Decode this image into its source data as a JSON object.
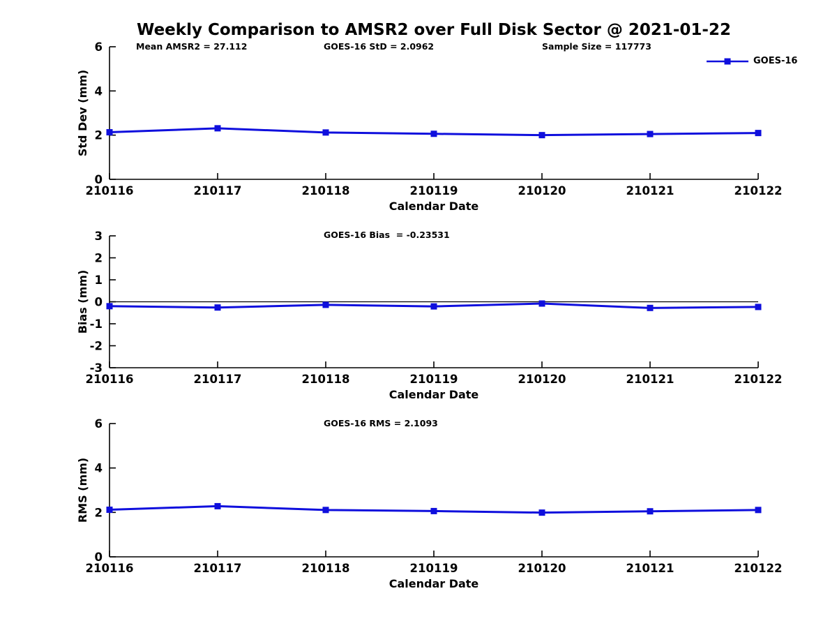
{
  "figure": {
    "title": "Weekly Comparison to AMSR2 over Full Disk Sector @ 2021-01-22"
  },
  "colors": {
    "line": "#0f0fdd",
    "axis": "#000000",
    "text": "#000000",
    "zero_line": "#000000"
  },
  "legend": {
    "label": "GOES-16"
  },
  "annotations": {
    "mean_amsr2": "Mean AMSR2 = 27.112",
    "goes_std": "GOES-16 StD = 2.0962",
    "sample_size": "Sample Size = 117773",
    "goes_bias": "GOES-16 Bias  = -0.23531",
    "goes_rms": "GOES-16 RMS = 2.1093"
  },
  "chart_data": [
    {
      "type": "line",
      "title": "",
      "x": [
        210116,
        210117,
        210118,
        210119,
        210120,
        210121,
        210122
      ],
      "x_tick_labels": [
        "210116",
        "210117",
        "210118",
        "210119",
        "210120",
        "210121",
        "210122"
      ],
      "series": [
        {
          "name": "GOES-16",
          "values": [
            2.13,
            2.31,
            2.12,
            2.06,
            2.0,
            2.05,
            2.0962
          ]
        }
      ],
      "xlabel": "Calendar Date",
      "ylabel": "Std Dev (mm)",
      "ylim": [
        0,
        6
      ],
      "yticks": [
        0,
        2,
        4,
        6
      ],
      "zero_line": false,
      "grid": false,
      "legend_position": "outside-top-right"
    },
    {
      "type": "line",
      "title": "",
      "x": [
        210116,
        210117,
        210118,
        210119,
        210120,
        210121,
        210122
      ],
      "x_tick_labels": [
        "210116",
        "210117",
        "210118",
        "210119",
        "210120",
        "210121",
        "210122"
      ],
      "series": [
        {
          "name": "GOES-16",
          "values": [
            -0.2,
            -0.26,
            -0.14,
            -0.21,
            -0.08,
            -0.28,
            -0.23531
          ]
        }
      ],
      "xlabel": "Calendar Date",
      "ylabel": "Bias (mm)",
      "ylim": [
        -3,
        3
      ],
      "yticks": [
        -3,
        -2,
        -1,
        0,
        1,
        2,
        3
      ],
      "zero_line": true,
      "grid": false,
      "legend_position": "none"
    },
    {
      "type": "line",
      "title": "",
      "x": [
        210116,
        210117,
        210118,
        210119,
        210120,
        210121,
        210122
      ],
      "x_tick_labels": [
        "210116",
        "210117",
        "210118",
        "210119",
        "210120",
        "210121",
        "210122"
      ],
      "series": [
        {
          "name": "GOES-16",
          "values": [
            2.12,
            2.28,
            2.11,
            2.06,
            1.99,
            2.05,
            2.1093
          ]
        }
      ],
      "xlabel": "Calendar Date",
      "ylabel": "RMS (mm)",
      "ylim": [
        0,
        6
      ],
      "yticks": [
        0,
        2,
        4,
        6
      ],
      "zero_line": false,
      "grid": false,
      "legend_position": "none"
    }
  ]
}
